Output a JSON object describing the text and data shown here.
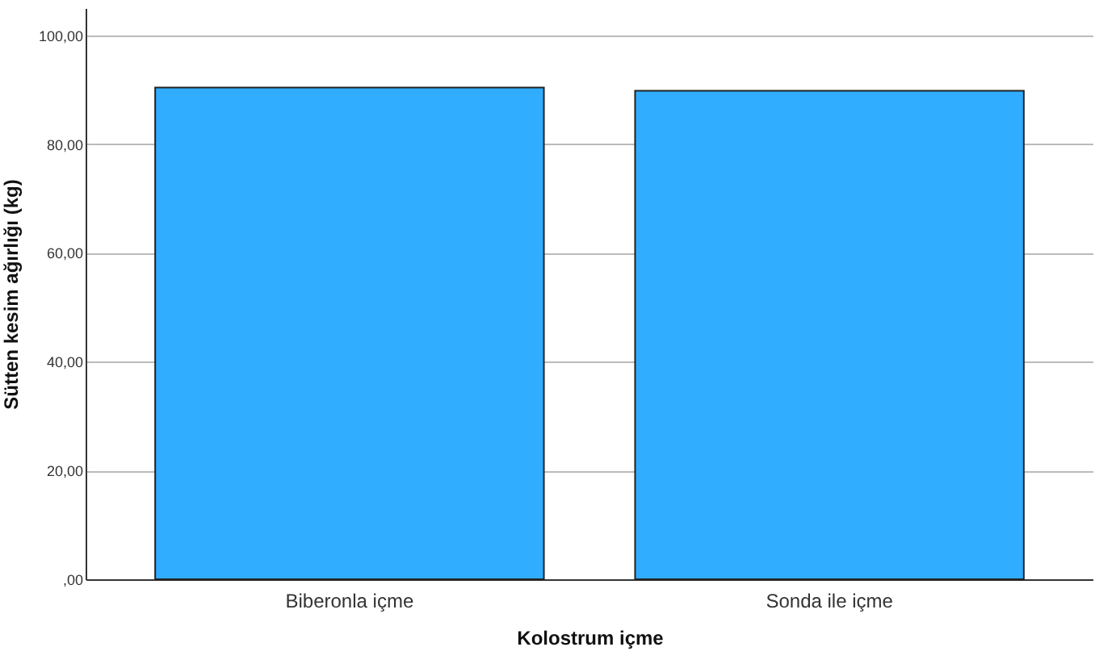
{
  "chart_data": {
    "type": "bar",
    "xlabel": "Kolostrum içme",
    "ylabel": "Sütten kesim ağırlığı (kg)",
    "categories": [
      "Biberonla içme",
      "Sonda ile içme"
    ],
    "values": [
      90.4,
      89.8
    ],
    "color": "#30adff",
    "ylim": [
      0,
      105
    ],
    "yticks": [
      {
        "value": 0,
        "label": ",00"
      },
      {
        "value": 20,
        "label": "20,00"
      },
      {
        "value": 40,
        "label": "40,00"
      },
      {
        "value": 60,
        "label": "60,00"
      },
      {
        "value": 80,
        "label": "80,00"
      },
      {
        "value": 100,
        "label": "100,00"
      }
    ],
    "grid": "y"
  }
}
